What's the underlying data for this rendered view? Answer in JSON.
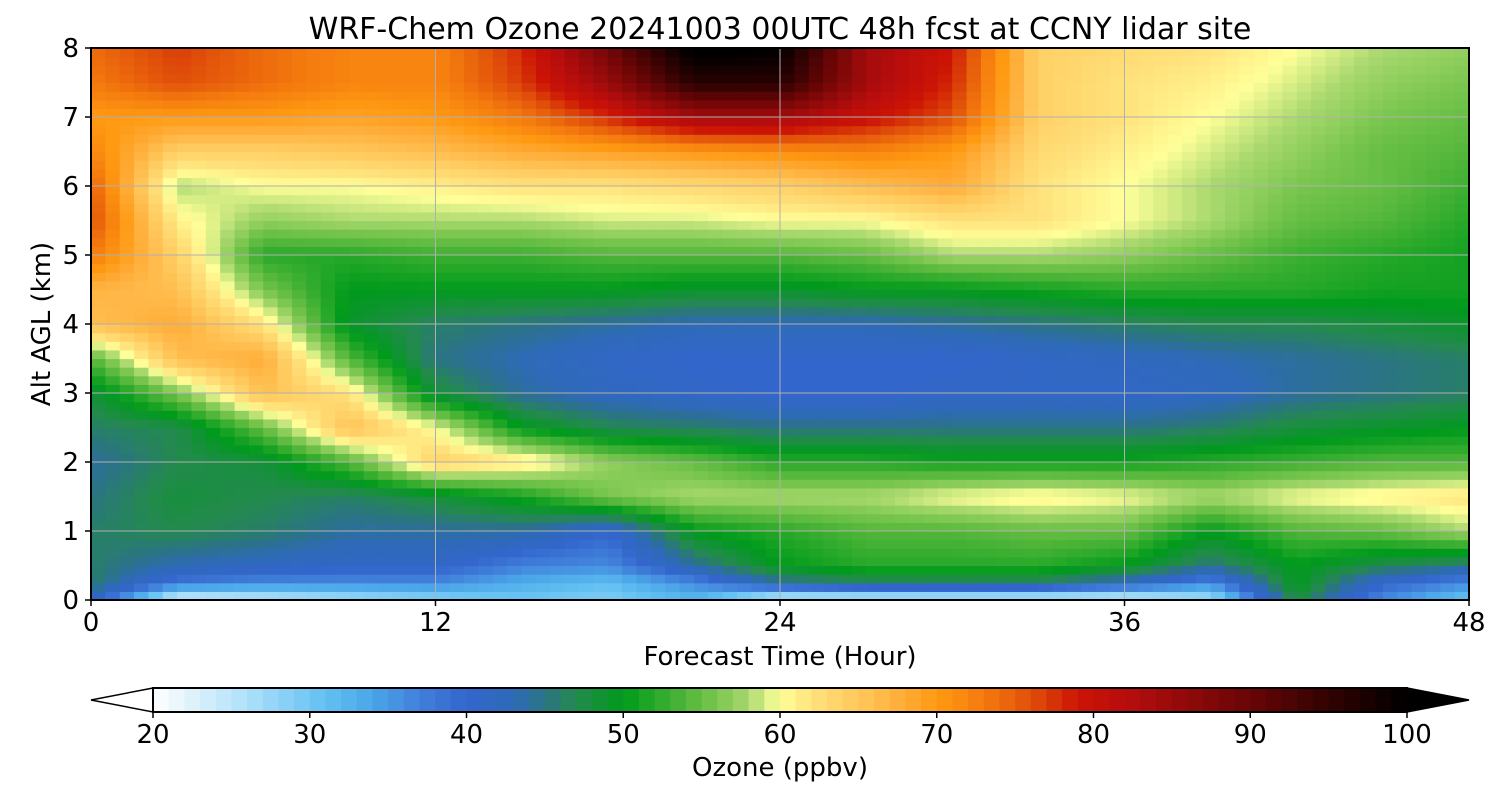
{
  "chart_data": {
    "type": "heatmap",
    "title": "WRF-Chem Ozone  20241003 00UTC 48h fcst at CCNY lidar site",
    "xlabel": "Forecast Time (Hour)",
    "ylabel": "Alt AGL (km)",
    "xlim": [
      0,
      48
    ],
    "ylim": [
      0,
      8
    ],
    "xticks": [
      0,
      12,
      24,
      36,
      48
    ],
    "yticks": [
      0,
      1,
      2,
      3,
      4,
      5,
      6,
      7,
      8
    ],
    "grid": true,
    "x": [
      0,
      3,
      6,
      9,
      12,
      15,
      18,
      21,
      24,
      27,
      30,
      33,
      36,
      39,
      42,
      45,
      48
    ],
    "y": [
      0,
      0.25,
      0.5,
      1,
      1.5,
      2,
      2.5,
      3,
      3.5,
      4,
      4.5,
      5,
      5.5,
      6,
      6.5,
      7,
      7.5,
      8
    ],
    "z": [
      [
        42,
        22,
        24,
        26,
        28,
        30,
        29,
        32,
        22,
        22,
        22,
        22,
        22,
        26,
        48,
        36,
        30
      ],
      [
        46,
        38,
        36,
        36,
        36,
        33,
        31,
        36,
        44,
        46,
        46,
        46,
        42,
        36,
        50,
        40,
        36
      ],
      [
        46,
        43,
        42,
        41,
        41,
        37,
        36,
        44,
        50,
        52,
        52,
        52,
        50,
        45,
        50,
        47,
        45
      ],
      [
        46,
        47,
        46,
        44,
        44,
        44,
        40,
        50,
        52,
        54,
        54,
        55,
        55,
        50,
        54,
        55,
        58
      ],
      [
        45,
        48,
        47,
        46,
        48,
        51,
        56,
        58,
        58,
        58,
        60,
        61,
        60,
        58,
        60,
        61,
        62
      ],
      [
        44,
        47,
        48,
        54,
        64,
        62,
        57,
        55,
        52,
        52,
        51,
        51,
        51,
        52,
        53,
        54,
        54
      ],
      [
        46,
        47,
        55,
        66,
        60,
        50,
        47,
        46,
        45,
        45,
        45,
        45,
        45,
        46,
        48,
        49,
        50
      ],
      [
        48,
        56,
        66,
        62,
        48,
        44,
        42,
        41,
        40,
        40,
        41,
        41,
        41,
        42,
        44,
        45,
        46
      ],
      [
        54,
        66,
        68,
        54,
        45,
        43,
        41,
        40,
        40,
        40,
        40,
        41,
        42,
        43,
        44,
        45,
        46
      ],
      [
        66,
        68,
        62,
        49,
        46,
        45,
        44,
        43,
        43,
        43,
        44,
        45,
        46,
        47,
        47,
        48,
        49
      ],
      [
        67,
        66,
        56,
        50,
        50,
        50,
        50,
        49,
        49,
        50,
        50,
        51,
        52,
        52,
        52,
        51,
        51
      ],
      [
        73,
        64,
        52,
        52,
        53,
        53,
        54,
        54,
        54,
        55,
        58,
        58,
        57,
        55,
        53,
        52,
        51
      ],
      [
        76,
        61,
        57,
        58,
        58,
        58,
        59,
        59,
        60,
        60,
        62,
        62,
        60,
        58,
        55,
        54,
        52
      ],
      [
        75,
        58,
        60,
        60,
        61,
        62,
        62,
        63,
        64,
        66,
        68,
        62,
        60,
        58,
        56,
        55,
        53
      ],
      [
        72,
        64,
        64,
        65,
        66,
        68,
        69,
        70,
        71,
        72,
        70,
        63,
        61,
        59,
        57,
        55,
        54
      ],
      [
        70,
        70,
        70,
        69,
        70,
        73,
        78,
        84,
        84,
        80,
        76,
        64,
        62,
        60,
        58,
        56,
        55
      ],
      [
        73,
        76,
        74,
        72,
        72,
        77,
        85,
        96,
        96,
        84,
        78,
        64,
        62,
        61,
        59,
        57,
        56
      ],
      [
        74,
        77,
        74,
        72,
        72,
        78,
        89,
        101,
        100,
        84,
        79,
        64,
        63,
        62,
        60,
        58,
        57
      ]
    ],
    "colorbar": {
      "label": "Ozone  (ppbv)",
      "min": 20,
      "max": 100,
      "ticks": [
        20,
        30,
        40,
        50,
        60,
        70,
        80,
        90,
        100
      ],
      "extend": "both",
      "stops": [
        [
          20,
          "#ffffff"
        ],
        [
          22,
          "#e4f4fc"
        ],
        [
          25,
          "#bde6fb"
        ],
        [
          28,
          "#8fd3f7"
        ],
        [
          31,
          "#62c0f2"
        ],
        [
          34,
          "#4ba5e8"
        ],
        [
          37,
          "#4180db"
        ],
        [
          40,
          "#3366cc"
        ],
        [
          43,
          "#2e6ab8"
        ],
        [
          45,
          "#2b7484"
        ],
        [
          47,
          "#238a4d"
        ],
        [
          50,
          "#009a1c"
        ],
        [
          52,
          "#27a829"
        ],
        [
          54,
          "#52b63a"
        ],
        [
          56,
          "#7ac64f"
        ],
        [
          58,
          "#aad96f"
        ],
        [
          60,
          "#ffff99"
        ],
        [
          62,
          "#ffe27c"
        ],
        [
          65,
          "#ffc85c"
        ],
        [
          68,
          "#ffab36"
        ],
        [
          70,
          "#ff9a12"
        ],
        [
          73,
          "#f47a0e"
        ],
        [
          76,
          "#e04f0a"
        ],
        [
          79,
          "#cc1405"
        ],
        [
          82,
          "#b80d0d"
        ],
        [
          86,
          "#8f0a0a"
        ],
        [
          90,
          "#680505"
        ],
        [
          95,
          "#320202"
        ],
        [
          100,
          "#000000"
        ]
      ]
    }
  }
}
